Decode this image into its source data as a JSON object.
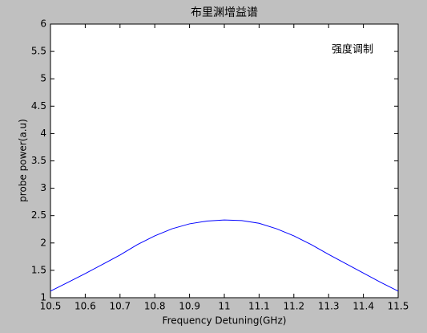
{
  "chart_data": {
    "type": "line",
    "title": "布里渊增益谱",
    "annotation": "强度调制",
    "x_label": "Frequency Detuning(GHz)",
    "y_label": "probe power(a.u)",
    "x": [
      10.5,
      10.55,
      10.6,
      10.65,
      10.7,
      10.75,
      10.8,
      10.85,
      10.9,
      10.95,
      11.0,
      11.05,
      11.1,
      11.15,
      11.2,
      11.25,
      11.3,
      11.35,
      11.4,
      11.45,
      11.5
    ],
    "values": [
      1.12,
      1.28,
      1.44,
      1.61,
      1.78,
      1.97,
      2.13,
      2.26,
      2.35,
      2.4,
      2.42,
      2.41,
      2.36,
      2.26,
      2.13,
      1.97,
      1.79,
      1.62,
      1.45,
      1.28,
      1.12
    ],
    "color": "#0000ff",
    "xlim": [
      10.5,
      11.5
    ],
    "xticks": [
      10.5,
      10.6,
      10.7,
      10.8,
      10.9,
      11,
      11.1,
      11.2,
      11.3,
      11.4,
      11.5
    ],
    "ylim": [
      1,
      6
    ],
    "yticks": [
      1,
      1.5,
      2,
      2.5,
      3,
      3.5,
      4,
      4.5,
      5,
      5.5,
      6
    ]
  }
}
